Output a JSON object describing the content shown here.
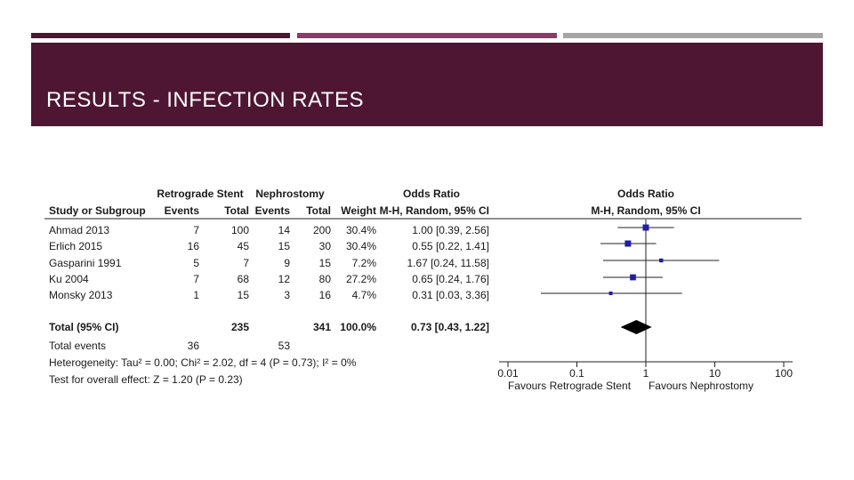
{
  "slide": {
    "title": "RESULTS - INFECTION RATES",
    "colors": {
      "banner": "#4e1632",
      "accent_1": "#4e1632",
      "accent_2": "#8c3a6a",
      "accent_3": "#a6a6a6",
      "marker": "#1f1fa8"
    }
  },
  "chart_data": {
    "type": "forest",
    "scale": "log",
    "headers": {
      "group1": "Retrograde Stent",
      "group2": "Nephrostomy",
      "study": "Study or Subgroup",
      "events": "Events",
      "total": "Total",
      "weight": "Weight",
      "or_title": "Odds Ratio",
      "or_method": "M-H, Random, 95% CI"
    },
    "studies": [
      {
        "name": "Ahmad 2013",
        "e1": "7",
        "t1": "100",
        "e2": "14",
        "t2": "200",
        "weight": "30.4%",
        "ci_text": "1.00 [0.39, 2.56]",
        "or": 1.0,
        "lo": 0.39,
        "hi": 2.56,
        "w": 30.4
      },
      {
        "name": "Erlich 2015",
        "e1": "16",
        "t1": "45",
        "e2": "15",
        "t2": "30",
        "weight": "30.4%",
        "ci_text": "0.55 [0.22, 1.41]",
        "or": 0.55,
        "lo": 0.22,
        "hi": 1.41,
        "w": 30.4
      },
      {
        "name": "Gasparini 1991",
        "e1": "5",
        "t1": "7",
        "e2": "9",
        "t2": "15",
        "weight": "7.2%",
        "ci_text": "1.67 [0.24, 11.58]",
        "or": 1.67,
        "lo": 0.24,
        "hi": 11.58,
        "w": 7.2
      },
      {
        "name": "Ku 2004",
        "e1": "7",
        "t1": "68",
        "e2": "12",
        "t2": "80",
        "weight": "27.2%",
        "ci_text": "0.65 [0.24, 1.76]",
        "or": 0.65,
        "lo": 0.24,
        "hi": 1.76,
        "w": 27.2
      },
      {
        "name": "Monsky 2013",
        "e1": "1",
        "t1": "15",
        "e2": "3",
        "t2": "16",
        "weight": "4.7%",
        "ci_text": "0.31 [0.03, 3.36]",
        "or": 0.31,
        "lo": 0.03,
        "hi": 3.36,
        "w": 4.7
      }
    ],
    "total": {
      "label": "Total (95% CI)",
      "t1": "235",
      "t2": "341",
      "weight": "100.0%",
      "ci_text": "0.73 [0.43, 1.22]",
      "or": 0.73,
      "lo": 0.43,
      "hi": 1.22
    },
    "total_events": {
      "label": "Total events",
      "e1": "36",
      "e2": "53"
    },
    "heterogeneity": "Heterogeneity: Tau² = 0.00; Chi² = 2.02, df = 4 (P = 0.73); I² = 0%",
    "overall_effect": "Test for overall effect: Z = 1.20 (P = 0.23)",
    "axis": {
      "ticks": [
        0.01,
        0.1,
        1,
        10,
        100
      ],
      "tick_labels": [
        "0.01",
        "0.1",
        "1",
        "10",
        "100"
      ]
    },
    "favours_left": "Favours Retrograde Stent",
    "favours_right": "Favours Nephrostomy"
  }
}
